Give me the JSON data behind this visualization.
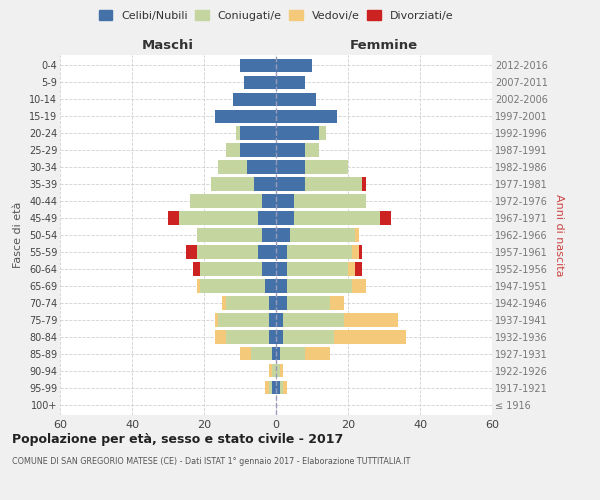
{
  "age_groups": [
    "100+",
    "95-99",
    "90-94",
    "85-89",
    "80-84",
    "75-79",
    "70-74",
    "65-69",
    "60-64",
    "55-59",
    "50-54",
    "45-49",
    "40-44",
    "35-39",
    "30-34",
    "25-29",
    "20-24",
    "15-19",
    "10-14",
    "5-9",
    "0-4"
  ],
  "birth_years": [
    "≤ 1916",
    "1917-1921",
    "1922-1926",
    "1927-1931",
    "1932-1936",
    "1937-1941",
    "1942-1946",
    "1947-1951",
    "1952-1956",
    "1957-1961",
    "1962-1966",
    "1967-1971",
    "1972-1976",
    "1977-1981",
    "1982-1986",
    "1987-1991",
    "1992-1996",
    "1997-2001",
    "2002-2006",
    "2007-2011",
    "2012-2016"
  ],
  "male": {
    "celibi": [
      0,
      1,
      0,
      1,
      2,
      2,
      2,
      3,
      4,
      5,
      4,
      5,
      4,
      6,
      8,
      10,
      10,
      17,
      12,
      9,
      10
    ],
    "coniugati": [
      0,
      1,
      1,
      6,
      12,
      14,
      12,
      18,
      17,
      17,
      18,
      22,
      20,
      12,
      8,
      4,
      1,
      0,
      0,
      0,
      0
    ],
    "vedovi": [
      0,
      1,
      1,
      3,
      3,
      1,
      1,
      1,
      0,
      0,
      0,
      0,
      0,
      0,
      0,
      0,
      0,
      0,
      0,
      0,
      0
    ],
    "divorziati": [
      0,
      0,
      0,
      0,
      0,
      0,
      0,
      0,
      2,
      3,
      0,
      3,
      0,
      0,
      0,
      0,
      0,
      0,
      0,
      0,
      0
    ]
  },
  "female": {
    "nubili": [
      0,
      1,
      0,
      1,
      2,
      2,
      3,
      3,
      3,
      3,
      4,
      5,
      5,
      8,
      8,
      8,
      12,
      17,
      11,
      8,
      10
    ],
    "coniugate": [
      0,
      1,
      1,
      7,
      14,
      17,
      12,
      18,
      17,
      18,
      18,
      24,
      20,
      16,
      12,
      4,
      2,
      0,
      0,
      0,
      0
    ],
    "vedove": [
      0,
      1,
      1,
      7,
      20,
      15,
      4,
      4,
      2,
      2,
      1,
      0,
      0,
      0,
      0,
      0,
      0,
      0,
      0,
      0,
      0
    ],
    "divorziate": [
      0,
      0,
      0,
      0,
      0,
      0,
      0,
      0,
      2,
      1,
      0,
      3,
      0,
      1,
      0,
      0,
      0,
      0,
      0,
      0,
      0
    ]
  },
  "colors": {
    "celibi": "#4472a8",
    "coniugati": "#c5d5a0",
    "vedovi": "#f5c97a",
    "divorziati": "#cc2222"
  },
  "xlim": 60,
  "title": "Popolazione per età, sesso e stato civile - 2017",
  "subtitle": "COMUNE DI SAN GREGORIO MATESE (CE) - Dati ISTAT 1° gennaio 2017 - Elaborazione TUTTITALIA.IT",
  "ylabel_left": "Fasce di età",
  "ylabel_right": "Anni di nascita",
  "label_maschi": "Maschi",
  "label_femmine": "Femmine",
  "legend_labels": [
    "Celibi/Nubili",
    "Coniugati/e",
    "Vedovi/e",
    "Divorziati/e"
  ],
  "bg_color": "#f0f0f0",
  "plot_bg": "#ffffff",
  "grid_color": "#cccccc"
}
